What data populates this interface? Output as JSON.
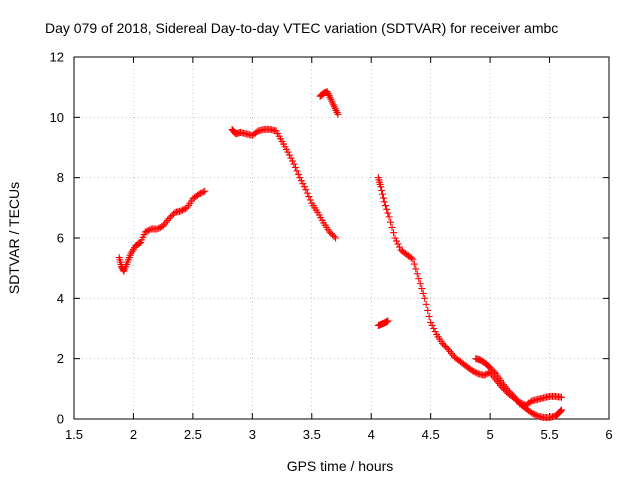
{
  "chart_data": {
    "type": "scatter",
    "title": "Day 079 of 2018, Sidereal Day-to-day VTEC variation (SDTVAR) for receiver ambc",
    "xlabel": "GPS time / hours",
    "ylabel": "SDTVAR / TECUs",
    "xlim": [
      1.5,
      6
    ],
    "ylim": [
      0,
      12
    ],
    "xticks": [
      1.5,
      2,
      2.5,
      3,
      3.5,
      4,
      4.5,
      5,
      5.5,
      6
    ],
    "yticks": [
      0,
      2,
      4,
      6,
      8,
      10,
      12
    ],
    "xtick_labels": [
      "1.5",
      "2",
      "2.5",
      "3",
      "3.5",
      "4",
      "4.5",
      "5",
      "5.5",
      "6"
    ],
    "ytick_labels": [
      "0",
      "2",
      "4",
      "6",
      "8",
      "10",
      "12"
    ],
    "grid": true,
    "marker": "plus",
    "color": "#ff0000",
    "series": [
      {
        "name": "SDTVAR",
        "segments": [
          [
            [
              1.88,
              5.35
            ],
            [
              1.9,
              5.05
            ],
            [
              1.92,
              4.9
            ],
            [
              1.95,
              5.2
            ],
            [
              1.98,
              5.5
            ],
            [
              2.02,
              5.75
            ],
            [
              2.06,
              5.85
            ],
            [
              2.1,
              6.2
            ],
            [
              2.15,
              6.3
            ],
            [
              2.2,
              6.3
            ],
            [
              2.25,
              6.4
            ],
            [
              2.3,
              6.65
            ],
            [
              2.35,
              6.85
            ],
            [
              2.4,
              6.9
            ],
            [
              2.45,
              7.0
            ],
            [
              2.5,
              7.3
            ],
            [
              2.55,
              7.45
            ],
            [
              2.6,
              7.55
            ]
          ],
          [
            [
              2.83,
              9.6
            ],
            [
              2.86,
              9.45
            ],
            [
              2.9,
              9.5
            ],
            [
              2.95,
              9.45
            ],
            [
              3.0,
              9.4
            ],
            [
              3.05,
              9.55
            ],
            [
              3.1,
              9.6
            ],
            [
              3.15,
              9.6
            ],
            [
              3.2,
              9.55
            ],
            [
              3.25,
              9.2
            ],
            [
              3.3,
              8.85
            ],
            [
              3.35,
              8.45
            ],
            [
              3.4,
              8.0
            ],
            [
              3.45,
              7.6
            ],
            [
              3.5,
              7.15
            ],
            [
              3.55,
              6.85
            ],
            [
              3.6,
              6.5
            ],
            [
              3.65,
              6.2
            ],
            [
              3.7,
              6.0
            ]
          ],
          [
            [
              3.57,
              10.7
            ],
            [
              3.6,
              10.8
            ],
            [
              3.63,
              10.85
            ],
            [
              3.66,
              10.6
            ],
            [
              3.69,
              10.35
            ],
            [
              3.72,
              10.1
            ]
          ],
          [
            [
              4.06,
              8.0
            ],
            [
              4.08,
              7.7
            ],
            [
              4.11,
              7.2
            ],
            [
              4.15,
              6.7
            ],
            [
              4.2,
              6.0
            ],
            [
              4.25,
              5.6
            ],
            [
              4.3,
              5.45
            ],
            [
              4.35,
              5.3
            ],
            [
              4.4,
              4.65
            ],
            [
              4.45,
              4.0
            ],
            [
              4.5,
              3.2
            ],
            [
              4.55,
              2.8
            ],
            [
              4.6,
              2.5
            ],
            [
              4.65,
              2.3
            ],
            [
              4.7,
              2.05
            ],
            [
              4.75,
              1.9
            ],
            [
              4.8,
              1.75
            ],
            [
              4.85,
              1.6
            ],
            [
              4.9,
              1.5
            ],
            [
              4.95,
              1.45
            ],
            [
              5.0,
              1.55
            ],
            [
              5.05,
              1.3
            ],
            [
              5.1,
              1.05
            ],
            [
              5.15,
              0.85
            ],
            [
              5.2,
              0.7
            ],
            [
              5.25,
              0.55
            ],
            [
              5.3,
              0.45
            ],
            [
              5.35,
              0.6
            ],
            [
              5.4,
              0.65
            ],
            [
              5.45,
              0.7
            ],
            [
              5.5,
              0.75
            ],
            [
              5.55,
              0.75
            ],
            [
              5.6,
              0.72
            ]
          ],
          [
            [
              4.06,
              3.1
            ],
            [
              4.09,
              3.15
            ],
            [
              4.12,
              3.2
            ],
            [
              4.14,
              3.25
            ]
          ],
          [
            [
              4.88,
              2.0
            ],
            [
              4.92,
              1.95
            ],
            [
              4.96,
              1.85
            ],
            [
              5.0,
              1.7
            ],
            [
              5.05,
              1.5
            ],
            [
              5.1,
              1.2
            ],
            [
              5.15,
              0.95
            ],
            [
              5.2,
              0.75
            ],
            [
              5.25,
              0.5
            ],
            [
              5.3,
              0.35
            ],
            [
              5.35,
              0.2
            ],
            [
              5.4,
              0.1
            ],
            [
              5.45,
              0.05
            ],
            [
              5.5,
              0.05
            ],
            [
              5.55,
              0.1
            ],
            [
              5.58,
              0.2
            ],
            [
              5.6,
              0.3
            ]
          ]
        ]
      }
    ]
  }
}
